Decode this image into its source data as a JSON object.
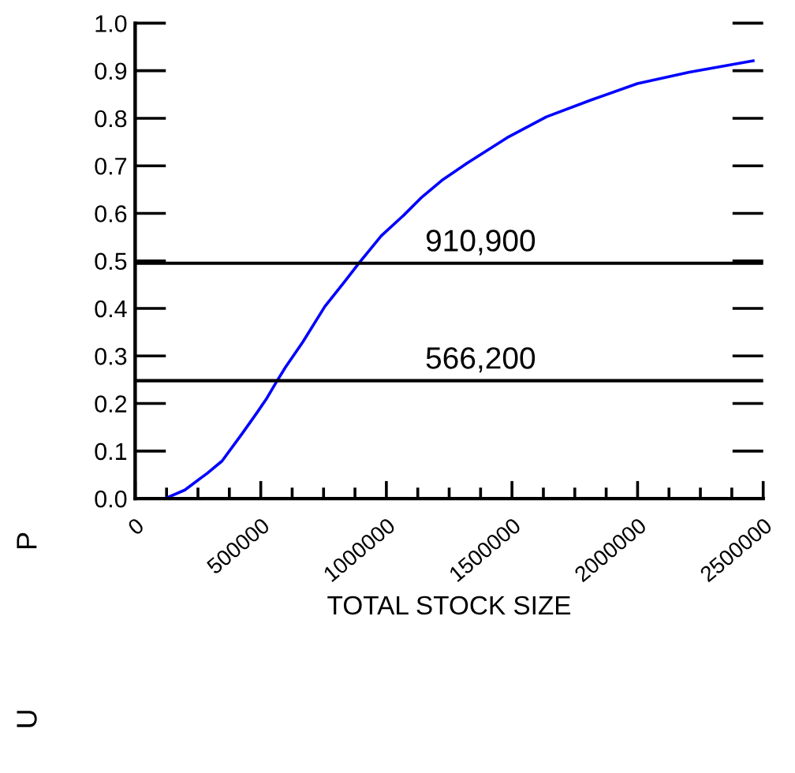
{
  "chart_data": {
    "type": "line",
    "xlabel": "TOTAL STOCK SIZE",
    "annotations": [
      "P",
      "U",
      "910,900",
      "566,200"
    ],
    "series": [
      {
        "color": "#0000ff",
        "x": [
          0,
          118600,
          197600,
          286600,
          345800,
          425000,
          484000,
          524000,
          563000,
          598000,
          667000,
          755000,
          833000,
          892000,
          980000,
          1069000,
          1137000,
          1225000,
          1323000,
          1480000,
          1637000,
          1813000,
          1999000,
          2206000,
          2460000
        ],
        "values": [
          0,
          0,
          0.018,
          0.053,
          0.079,
          0.136,
          0.18,
          0.211,
          0.246,
          0.276,
          0.329,
          0.404,
          0.456,
          0.496,
          0.553,
          0.596,
          0.632,
          0.671,
          0.706,
          0.759,
          0.803,
          0.838,
          0.873,
          0.897,
          0.921
        ]
      }
    ],
    "xlim": [
      0,
      2500000
    ],
    "xticks": [
      0,
      500000,
      1000000,
      1500000,
      2000000,
      2500000
    ],
    "ylim": [
      0,
      1.0
    ],
    "yticks": [
      {
        "value": 0,
        "label": "0.0"
      },
      0.1,
      0.2,
      0.3,
      0.4,
      0.5,
      0.6,
      0.7,
      0.8,
      0.9,
      {
        "value": 1.0,
        "label": "1.0"
      }
    ],
    "ref_lines": [
      {
        "axis": "y",
        "value": 0.495,
        "color": "#000000"
      },
      {
        "axis": "y",
        "value": 0.248,
        "color": "#000000"
      }
    ],
    "grid": false,
    "legend": false,
    "marker": "none",
    "line_style": "solid"
  }
}
